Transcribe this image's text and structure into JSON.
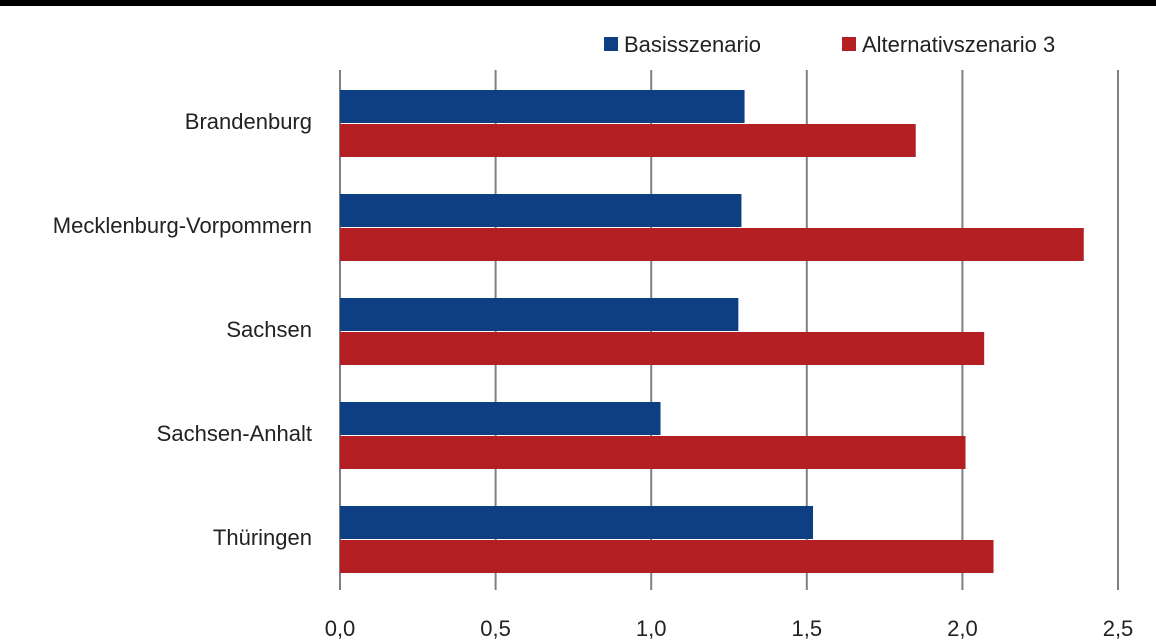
{
  "chart_data": {
    "type": "bar",
    "orientation": "horizontal",
    "categories": [
      "Brandenburg",
      "Mecklenburg-Vorpommern",
      "Sachsen",
      "Sachsen-Anhalt",
      "Thüringen"
    ],
    "series": [
      {
        "name": "Basisszenario",
        "color": "#0e3f83",
        "values": [
          1.3,
          1.29,
          1.28,
          1.03,
          1.52
        ]
      },
      {
        "name": "Alternativszenario 3",
        "color": "#b41f23",
        "values": [
          1.85,
          2.39,
          2.07,
          2.01,
          2.1
        ]
      }
    ],
    "xlim": [
      0,
      2.5
    ],
    "xticks": [
      "0,0",
      "0,5",
      "1,0",
      "1,5",
      "2,0",
      "2,5"
    ],
    "grid": "vertical",
    "legend_position": "top-right"
  }
}
